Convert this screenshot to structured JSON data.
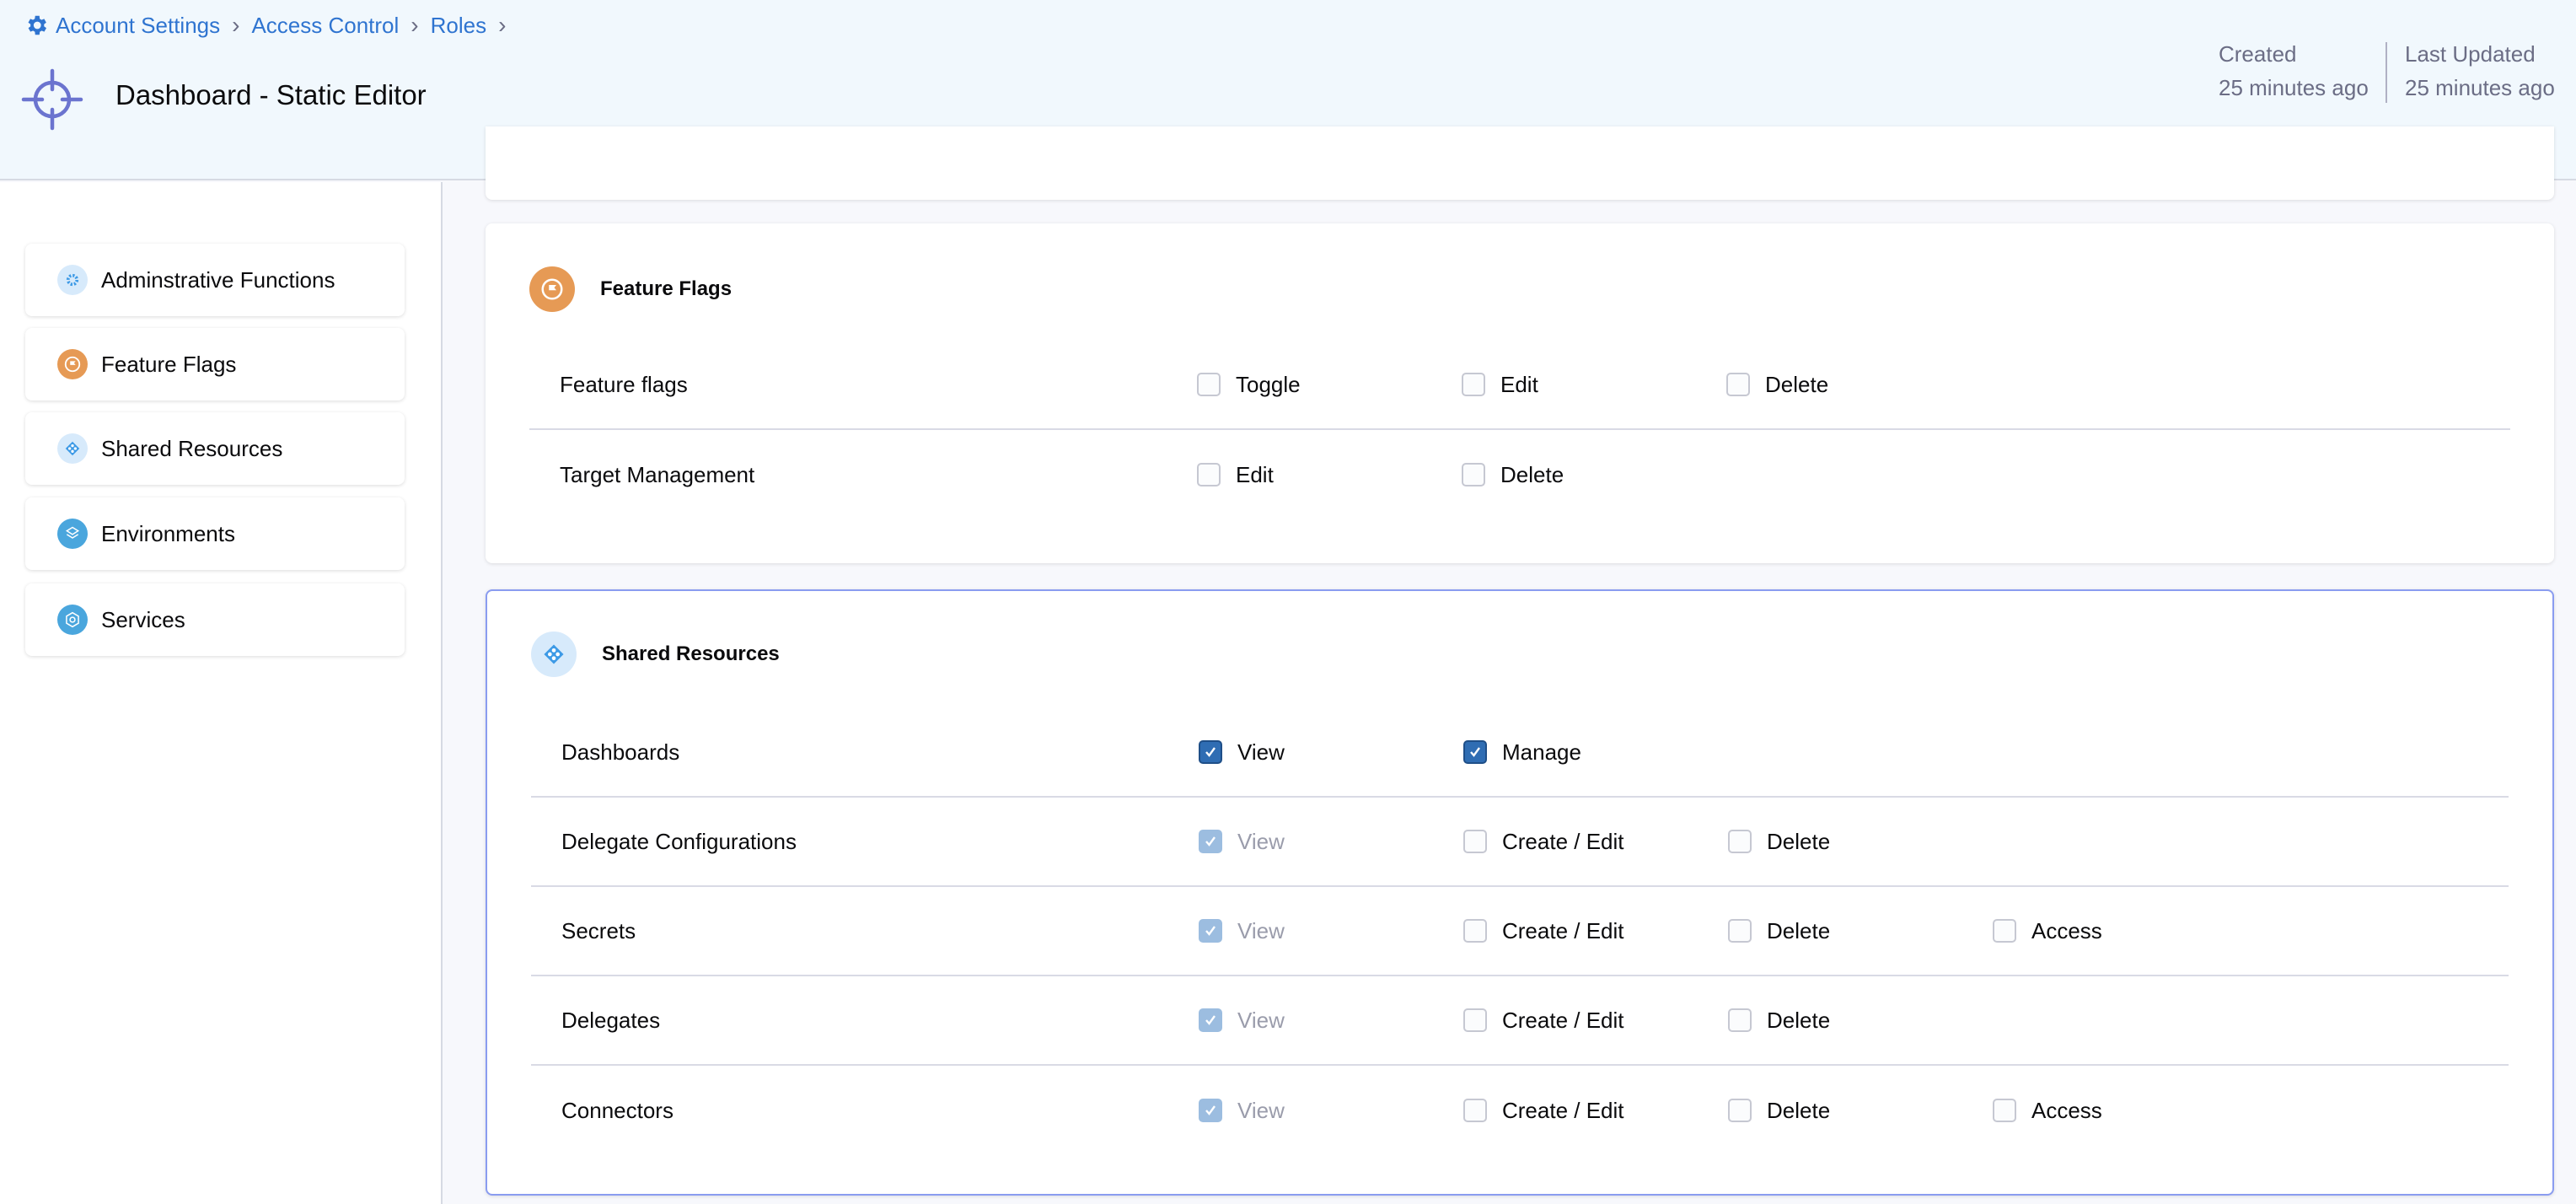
{
  "breadcrumb": [
    {
      "label": "Account Settings",
      "icon": "gear-icon"
    },
    {
      "label": "Access Control"
    },
    {
      "label": "Roles"
    }
  ],
  "header": {
    "title": "Dashboard - Static Editor",
    "created_label": "Created",
    "created_value": "25 minutes ago",
    "updated_label": "Last Updated",
    "updated_value": "25 minutes ago",
    "icon": "crosshair-icon",
    "icon_color": "#6b74cf"
  },
  "sidebar": {
    "items": [
      {
        "label": "Adminstrative Functions",
        "icon": "gear-icon",
        "color": "#d7eafb"
      },
      {
        "label": "Feature Flags",
        "icon": "flag-icon",
        "color": "#e69a55"
      },
      {
        "label": "Shared Resources",
        "icon": "shared-resources-icon",
        "color": "#d7eafb"
      },
      {
        "label": "Environments",
        "icon": "environments-icon",
        "color": "#4aa6dd"
      },
      {
        "label": "Services",
        "icon": "services-icon",
        "color": "#4aa6dd"
      }
    ]
  },
  "sections": [
    {
      "title": "Feature Flags",
      "icon": "flag-icon",
      "rows": [
        {
          "label": "Feature flags",
          "perms": [
            {
              "label": "Toggle",
              "checked": false,
              "disabled": false
            },
            {
              "label": "Edit",
              "checked": false,
              "disabled": false
            },
            {
              "label": "Delete",
              "checked": false,
              "disabled": false
            }
          ]
        },
        {
          "label": "Target Management",
          "perms": [
            {
              "label": "Edit",
              "checked": false,
              "disabled": false
            },
            {
              "label": "Delete",
              "checked": false,
              "disabled": false
            }
          ]
        }
      ]
    },
    {
      "title": "Shared Resources",
      "icon": "shared-resources-icon",
      "rows": [
        {
          "label": "Dashboards",
          "perms": [
            {
              "label": "View",
              "checked": true,
              "disabled": false
            },
            {
              "label": "Manage",
              "checked": true,
              "disabled": false
            }
          ]
        },
        {
          "label": "Delegate Configurations",
          "perms": [
            {
              "label": "View",
              "checked": true,
              "disabled": true
            },
            {
              "label": "Create / Edit",
              "checked": false,
              "disabled": false
            },
            {
              "label": "Delete",
              "checked": false,
              "disabled": false
            }
          ]
        },
        {
          "label": "Secrets",
          "perms": [
            {
              "label": "View",
              "checked": true,
              "disabled": true
            },
            {
              "label": "Create / Edit",
              "checked": false,
              "disabled": false
            },
            {
              "label": "Delete",
              "checked": false,
              "disabled": false
            },
            {
              "label": "Access",
              "checked": false,
              "disabled": false
            }
          ]
        },
        {
          "label": "Delegates",
          "perms": [
            {
              "label": "View",
              "checked": true,
              "disabled": true
            },
            {
              "label": "Create / Edit",
              "checked": false,
              "disabled": false
            },
            {
              "label": "Delete",
              "checked": false,
              "disabled": false
            }
          ]
        },
        {
          "label": "Connectors",
          "perms": [
            {
              "label": "View",
              "checked": true,
              "disabled": true
            },
            {
              "label": "Create / Edit",
              "checked": false,
              "disabled": false
            },
            {
              "label": "Delete",
              "checked": false,
              "disabled": false
            },
            {
              "label": "Access",
              "checked": false,
              "disabled": false
            }
          ]
        }
      ]
    }
  ]
}
